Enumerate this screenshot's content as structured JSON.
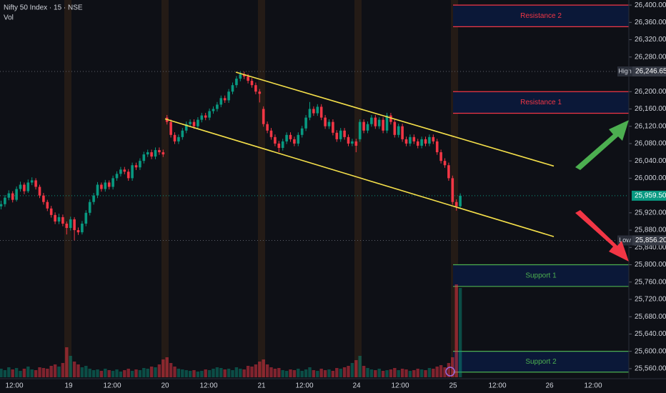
{
  "chart_data": {
    "type": "candlestick",
    "title": "Nifty 50 Index · 15 · NSE",
    "volume_label": "Vol",
    "up_color": "#089981",
    "down_color": "#f23645",
    "ylim": [
      25540,
      26420
    ],
    "yticks": [
      {
        "value": 26400,
        "label": "26,400.00"
      },
      {
        "value": 26360,
        "label": "26,360.00"
      },
      {
        "value": 26320,
        "label": "26,320.00"
      },
      {
        "value": 26280,
        "label": "26,280.00"
      },
      {
        "value": 26200,
        "label": "26,200.00"
      },
      {
        "value": 26160,
        "label": "26,160.00"
      },
      {
        "value": 26120,
        "label": "26,120.00"
      },
      {
        "value": 26080,
        "label": "26,080.00"
      },
      {
        "value": 26040,
        "label": "26,040.00"
      },
      {
        "value": 26000,
        "label": "26,000.00"
      },
      {
        "value": 25920,
        "label": "25,920.00"
      },
      {
        "value": 25880,
        "label": "25,880.00"
      },
      {
        "value": 25840,
        "label": "25,840.00"
      },
      {
        "value": 25800,
        "label": "25,800.00"
      },
      {
        "value": 25760,
        "label": "25,760.00"
      },
      {
        "value": 25720,
        "label": "25,720.00"
      },
      {
        "value": 25680,
        "label": "25,680.00"
      },
      {
        "value": 25640,
        "label": "25,640.00"
      },
      {
        "value": 25600,
        "label": "25,600.00"
      },
      {
        "value": 25560,
        "label": "25,560.00"
      }
    ],
    "xlabels": [
      "12:00",
      "19",
      "12:00",
      "20",
      "12:00",
      "21",
      "12:00",
      "24",
      "12:00",
      "25",
      "12:00",
      "26",
      "12:00"
    ],
    "ohlc": [
      [
        25935,
        25948,
        25928,
        25940
      ],
      [
        25940,
        25961,
        25934,
        25955
      ],
      [
        25955,
        25972,
        25949,
        25965
      ],
      [
        25965,
        25970,
        25944,
        25950
      ],
      [
        25950,
        25981,
        25946,
        25975
      ],
      [
        25975,
        25992,
        25969,
        25985
      ],
      [
        25985,
        25990,
        25963,
        25970
      ],
      [
        25970,
        25997,
        25966,
        25990
      ],
      [
        25990,
        26002,
        25984,
        25995
      ],
      [
        25995,
        26000,
        25974,
        25980
      ],
      [
        25980,
        25985,
        25954,
        25960
      ],
      [
        25960,
        25966,
        25939,
        25945
      ],
      [
        25945,
        25950,
        25924,
        25930
      ],
      [
        25930,
        25936,
        25909,
        25915
      ],
      [
        25915,
        25921,
        25894,
        25900
      ],
      [
        25900,
        25918,
        25894,
        25910
      ],
      [
        25910,
        25916,
        25889,
        25895
      ],
      [
        25895,
        25900,
        25870,
        25885
      ],
      [
        25885,
        25911,
        25879,
        25905
      ],
      [
        25905,
        25910,
        25856.2,
        25880
      ],
      [
        25880,
        25886,
        25869,
        25875
      ],
      [
        25875,
        25901,
        25870,
        25895
      ],
      [
        25895,
        25926,
        25889,
        25920
      ],
      [
        25920,
        25951,
        25914,
        25945
      ],
      [
        25945,
        25966,
        25939,
        25960
      ],
      [
        25960,
        25991,
        25954,
        25985
      ],
      [
        25985,
        25990,
        25969,
        25975
      ],
      [
        25975,
        25996,
        25969,
        25990
      ],
      [
        25990,
        25995,
        25974,
        25980
      ],
      [
        25980,
        26006,
        25974,
        26000
      ],
      [
        26000,
        26016,
        25994,
        26010
      ],
      [
        26010,
        26026,
        26004,
        26020
      ],
      [
        26020,
        26026,
        26009,
        26015
      ],
      [
        26015,
        26021,
        25994,
        26000
      ],
      [
        26000,
        26036,
        25994,
        26030
      ],
      [
        26030,
        26036,
        26019,
        26025
      ],
      [
        26025,
        26046,
        26019,
        26040
      ],
      [
        26040,
        26061,
        26034,
        26055
      ],
      [
        26055,
        26066,
        26049,
        26060
      ],
      [
        26060,
        26066,
        26044,
        26050
      ],
      [
        26050,
        26071,
        26044,
        26065
      ],
      [
        26065,
        26071,
        26054,
        26060
      ],
      [
        26060,
        26066,
        26049,
        26055
      ],
      [
        26140,
        26146,
        26124,
        26130
      ],
      [
        26130,
        26136,
        26094,
        26100
      ],
      [
        26100,
        26106,
        26079,
        26085
      ],
      [
        26085,
        26101,
        26079,
        26095
      ],
      [
        26095,
        26116,
        26089,
        26110
      ],
      [
        26110,
        26131,
        26104,
        26125
      ],
      [
        26125,
        26136,
        26119,
        26130
      ],
      [
        26130,
        26136,
        26114,
        26120
      ],
      [
        26120,
        26141,
        26114,
        26135
      ],
      [
        26135,
        26151,
        26129,
        26145
      ],
      [
        26145,
        26151,
        26134,
        26140
      ],
      [
        26140,
        26161,
        26134,
        26155
      ],
      [
        26155,
        26166,
        26149,
        26160
      ],
      [
        26160,
        26176,
        26154,
        26170
      ],
      [
        26170,
        26191,
        26164,
        26185
      ],
      [
        26185,
        26191,
        26174,
        26180
      ],
      [
        26180,
        26206,
        26174,
        26200
      ],
      [
        26200,
        26221,
        26194,
        26215
      ],
      [
        26215,
        26236,
        26209,
        26230
      ],
      [
        26230,
        26246.65,
        26224,
        26240
      ],
      [
        26240,
        26246,
        26229,
        26235
      ],
      [
        26235,
        26241,
        26219,
        26225
      ],
      [
        26225,
        26231,
        26209,
        26215
      ],
      [
        26215,
        26221,
        26194,
        26200
      ],
      [
        26200,
        26206,
        26175,
        26195
      ],
      [
        26160,
        26166,
        26119,
        26125
      ],
      [
        26125,
        26131,
        26104,
        26110
      ],
      [
        26110,
        26116,
        26089,
        26095
      ],
      [
        26095,
        26101,
        26074,
        26080
      ],
      [
        26080,
        26086,
        26060,
        26070
      ],
      [
        26070,
        26091,
        26064,
        26085
      ],
      [
        26085,
        26106,
        26079,
        26100
      ],
      [
        26100,
        26106,
        26084,
        26090
      ],
      [
        26090,
        26096,
        26074,
        26080
      ],
      [
        26080,
        26106,
        26074,
        26100
      ],
      [
        26100,
        26121,
        26094,
        26115
      ],
      [
        26115,
        26146,
        26109,
        26140
      ],
      [
        26140,
        26176,
        26134,
        26160
      ],
      [
        26160,
        26166,
        26144,
        26150
      ],
      [
        26150,
        26171,
        26144,
        26165
      ],
      [
        26165,
        26171,
        26134,
        26140
      ],
      [
        26140,
        26146,
        26114,
        26120
      ],
      [
        26120,
        26136,
        26114,
        26130
      ],
      [
        26130,
        26136,
        26099,
        26105
      ],
      [
        26105,
        26111,
        26084,
        26090
      ],
      [
        26090,
        26116,
        26084,
        26110
      ],
      [
        26110,
        26116,
        26089,
        26095
      ],
      [
        26095,
        26101,
        26074,
        26080
      ],
      [
        26080,
        26091,
        26074,
        26085
      ],
      [
        26085,
        26091,
        26060,
        26075
      ],
      [
        26090,
        26136,
        26084,
        26130
      ],
      [
        26130,
        26136,
        26104,
        26110
      ],
      [
        26110,
        26131,
        26104,
        26125
      ],
      [
        26125,
        26146,
        26119,
        26140
      ],
      [
        26140,
        26146,
        26114,
        26120
      ],
      [
        26120,
        26141,
        26114,
        26135
      ],
      [
        26135,
        26141,
        26104,
        26110
      ],
      [
        26110,
        26151,
        26104,
        26145
      ],
      [
        26145,
        26151,
        26124,
        26130
      ],
      [
        26130,
        26136,
        26094,
        26100
      ],
      [
        26100,
        26126,
        26094,
        26120
      ],
      [
        26120,
        26126,
        26084,
        26090
      ],
      [
        26090,
        26096,
        26074,
        26080
      ],
      [
        26080,
        26101,
        26074,
        26095
      ],
      [
        26095,
        26101,
        26079,
        26085
      ],
      [
        26085,
        26091,
        26069,
        26075
      ],
      [
        26075,
        26096,
        26069,
        26090
      ],
      [
        26090,
        26096,
        26074,
        26080
      ],
      [
        26080,
        26101,
        26074,
        26095
      ],
      [
        26095,
        26101,
        26079,
        26085
      ],
      [
        26085,
        26091,
        26054,
        26060
      ],
      [
        26060,
        26066,
        26034,
        26040
      ],
      [
        26040,
        26046,
        26024,
        26030
      ],
      [
        26030,
        26036,
        25994,
        26000
      ],
      [
        26000,
        26006,
        25939,
        25945
      ],
      [
        25945,
        25951,
        25925,
        25935
      ],
      [
        25935,
        25965,
        25930,
        25959.5
      ]
    ],
    "volume": [
      12,
      10,
      14,
      11,
      13,
      9,
      12,
      15,
      11,
      10,
      14,
      13,
      12,
      16,
      18,
      15,
      20,
      42,
      30,
      22,
      18,
      14,
      16,
      12,
      10,
      11,
      9,
      12,
      10,
      9,
      11,
      8,
      10,
      12,
      9,
      11,
      10,
      13,
      12,
      15,
      14,
      18,
      25,
      28,
      20,
      15,
      12,
      11,
      10,
      9,
      10,
      8,
      9,
      11,
      10,
      12,
      14,
      13,
      11,
      12,
      10,
      14,
      12,
      11,
      16,
      15,
      18,
      22,
      25,
      18,
      14,
      12,
      13,
      10,
      9,
      11,
      10,
      12,
      9,
      11,
      14,
      10,
      9,
      12,
      10,
      11,
      9,
      13,
      12,
      14,
      16,
      20,
      24,
      30,
      16,
      13,
      11,
      10,
      12,
      9,
      10,
      11,
      13,
      10,
      12,
      11,
      9,
      10,
      12,
      11,
      10,
      13,
      12,
      15,
      17,
      14,
      20,
      28,
      130,
      125
    ],
    "markers": [
      {
        "label": "High",
        "value": 26246.65,
        "value_label": "26,246.65"
      },
      {
        "label": "Low",
        "value": 25856.2,
        "value_label": "25,856.20"
      }
    ],
    "last_price": {
      "value": 25959.5,
      "label": "25,959.50"
    },
    "zones": [
      {
        "label": "Resistance 2",
        "top": 26400,
        "bottom": 26350,
        "color": "#f23645"
      },
      {
        "label": "Resistance 1",
        "top": 26200,
        "bottom": 26150,
        "color": "#f23645"
      },
      {
        "label": "Support 1",
        "top": 25800,
        "bottom": 25750,
        "color": "#4caf50"
      },
      {
        "label": "Support 2",
        "top": 25600,
        "bottom": 25552,
        "color": "#4caf50"
      }
    ],
    "trendlines": [
      {
        "color": "#f5e04a",
        "prices": [
          26245,
          26028
        ]
      },
      {
        "color": "#f5e04a",
        "prices": [
          26137,
          25865
        ]
      }
    ]
  }
}
